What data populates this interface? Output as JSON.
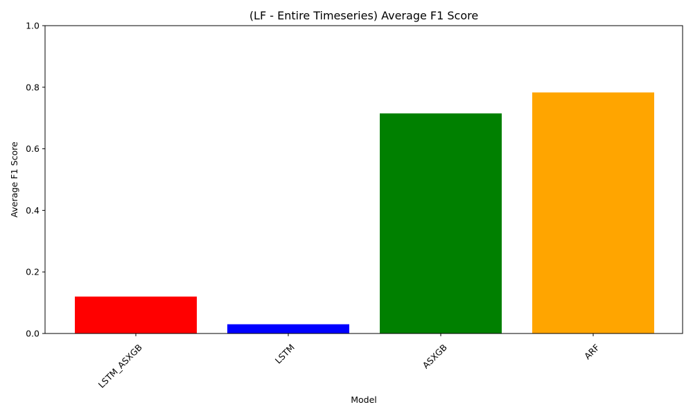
{
  "chart_data": {
    "type": "bar",
    "title": "(LF - Entire Timeseries) Average F1 Score",
    "xlabel": "Model",
    "ylabel": "Average F1 Score",
    "categories": [
      "LSTM_ASXGB",
      "LSTM",
      "ASXGB",
      "ARF"
    ],
    "values": [
      0.12,
      0.03,
      0.715,
      0.783
    ],
    "colors": [
      "#ff0000",
      "#0000ff",
      "#008000",
      "#ffa500"
    ],
    "ylim": [
      0,
      1
    ],
    "yticks": [
      0.0,
      0.2,
      0.4,
      0.6,
      0.8,
      1.0
    ],
    "ytick_labels": [
      "0.0",
      "0.2",
      "0.4",
      "0.6",
      "0.8",
      "1.0"
    ],
    "grid": false,
    "legend": "none"
  }
}
